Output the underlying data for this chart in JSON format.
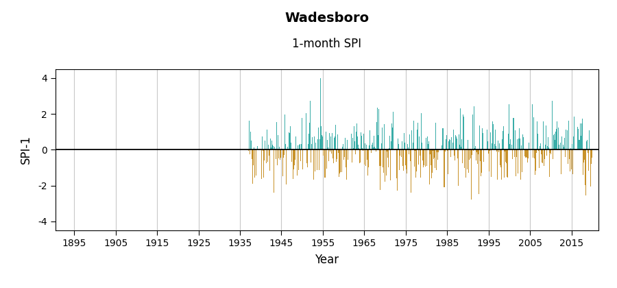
{
  "title": "Wadesboro",
  "subtitle": "1-month SPI",
  "ylabel": "SPI-1",
  "xlabel": "Year",
  "xlim": [
    1890.5,
    2021.5
  ],
  "ylim": [
    -4.5,
    4.5
  ],
  "yticks": [
    -4,
    -2,
    0,
    2,
    4
  ],
  "xticks": [
    1895,
    1905,
    1915,
    1925,
    1935,
    1945,
    1955,
    1965,
    1975,
    1985,
    1995,
    2005,
    2015
  ],
  "data_start_year": 1937,
  "data_end_year": 2019,
  "color_positive": "#3aada8",
  "color_negative": "#c8922a",
  "background_color": "#ffffff",
  "grid_color": "#c8c8c8",
  "zero_line_color": "#000000",
  "seed": 42,
  "n_months": 996,
  "title_fontsize": 14,
  "subtitle_fontsize": 12,
  "axis_label_fontsize": 12,
  "tick_fontsize": 10
}
